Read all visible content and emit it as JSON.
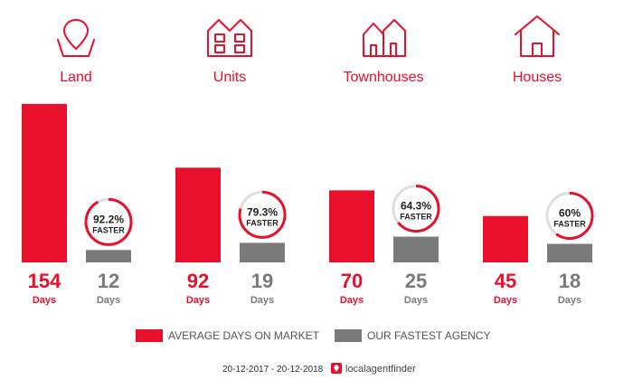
{
  "colors": {
    "accent": "#e8102a",
    "grey": "#7a7a7a",
    "ring_track": "#dddddd"
  },
  "chart_data": {
    "type": "bar",
    "categories": [
      "Land",
      "Units",
      "Townhouses",
      "Houses"
    ],
    "icons": [
      "map-pin-icon",
      "apartment-icon",
      "townhouse-icon",
      "house-icon"
    ],
    "series": [
      {
        "name": "AVERAGE DAYS ON MARKET",
        "values": [
          154,
          92,
          70,
          45
        ]
      },
      {
        "name": "OUR FASTEST AGENCY",
        "values": [
          12,
          19,
          25,
          18
        ]
      }
    ],
    "value_unit": "Days",
    "faster_percent": [
      92.2,
      79.3,
      64.3,
      60
    ],
    "faster_labels": [
      "92.2%",
      "79.3%",
      "64.3%",
      "60%"
    ],
    "faster_word": "FASTER",
    "ylim": [
      0,
      160
    ]
  },
  "footer": {
    "date_range": "20-12-2017 - 20-12-2018",
    "brand": "localagentfinder"
  }
}
